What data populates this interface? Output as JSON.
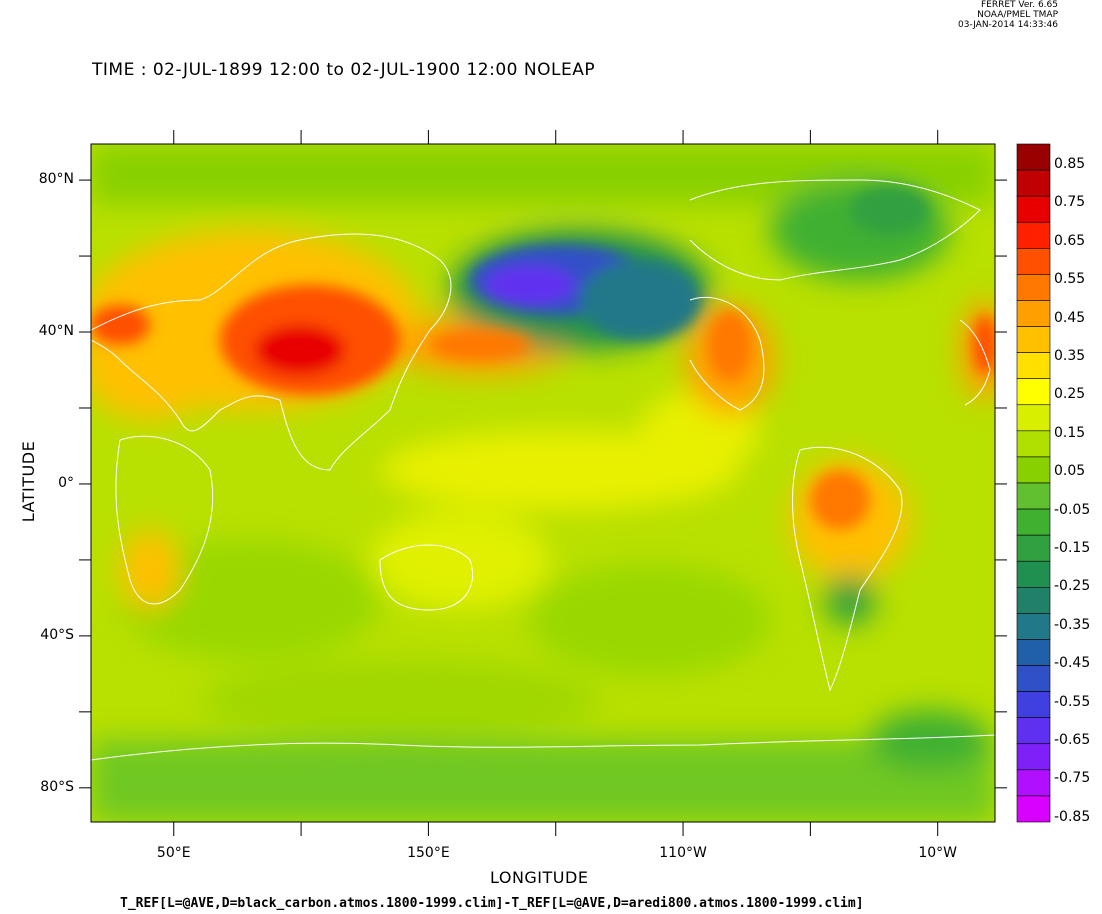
{
  "header": {
    "line1": "FERRET Ver. 6.65",
    "line2": "NOAA/PMEL TMAP",
    "line3": "03-JAN-2014 14:33:46"
  },
  "title": "TIME : 02-JUL-1899 12:00 to 02-JUL-1900 12:00 NOLEAP",
  "ylabel": "LATITUDE",
  "xlabel": "LONGITUDE",
  "caption": "T_REF[L=@AVE,D=black_carbon.atmos.1800-1999.clim]-T_REF[L=@AVE,D=aredi800.atmos.1800-1999.clim]",
  "lat_ticks": [
    {
      "label": "80°N",
      "value": 80
    },
    {
      "label": "40°N",
      "value": 40
    },
    {
      "label": "0°",
      "value": 0
    },
    {
      "label": "40°S",
      "value": -40
    },
    {
      "label": "80°S",
      "value": -80
    }
  ],
  "lon_ticks": [
    {
      "label": "50°E",
      "value": 50
    },
    {
      "label": "150°E",
      "value": 150
    },
    {
      "label": "110°W",
      "value": 250
    },
    {
      "label": "10°W",
      "value": 350
    }
  ],
  "colorbar": {
    "labels": [
      "0.85",
      "0.75",
      "0.65",
      "0.55",
      "0.45",
      "0.35",
      "0.25",
      "0.15",
      "0.05",
      "-0.05",
      "-0.15",
      "-0.25",
      "-0.35",
      "-0.45",
      "-0.55",
      "-0.65",
      "-0.75",
      "-0.85"
    ],
    "colors": [
      "#990000",
      "#c00000",
      "#e80000",
      "#ff2000",
      "#ff5000",
      "#ff7800",
      "#ffa000",
      "#ffc000",
      "#ffe000",
      "#ffff00",
      "#d8f000",
      "#b0e000",
      "#88d000",
      "#60c030",
      "#40b030",
      "#30a040",
      "#209050",
      "#208068",
      "#207888",
      "#2060a8",
      "#3050c8",
      "#4040e0",
      "#6030f0",
      "#8020f8",
      "#b010ff",
      "#d800ff"
    ]
  }
}
